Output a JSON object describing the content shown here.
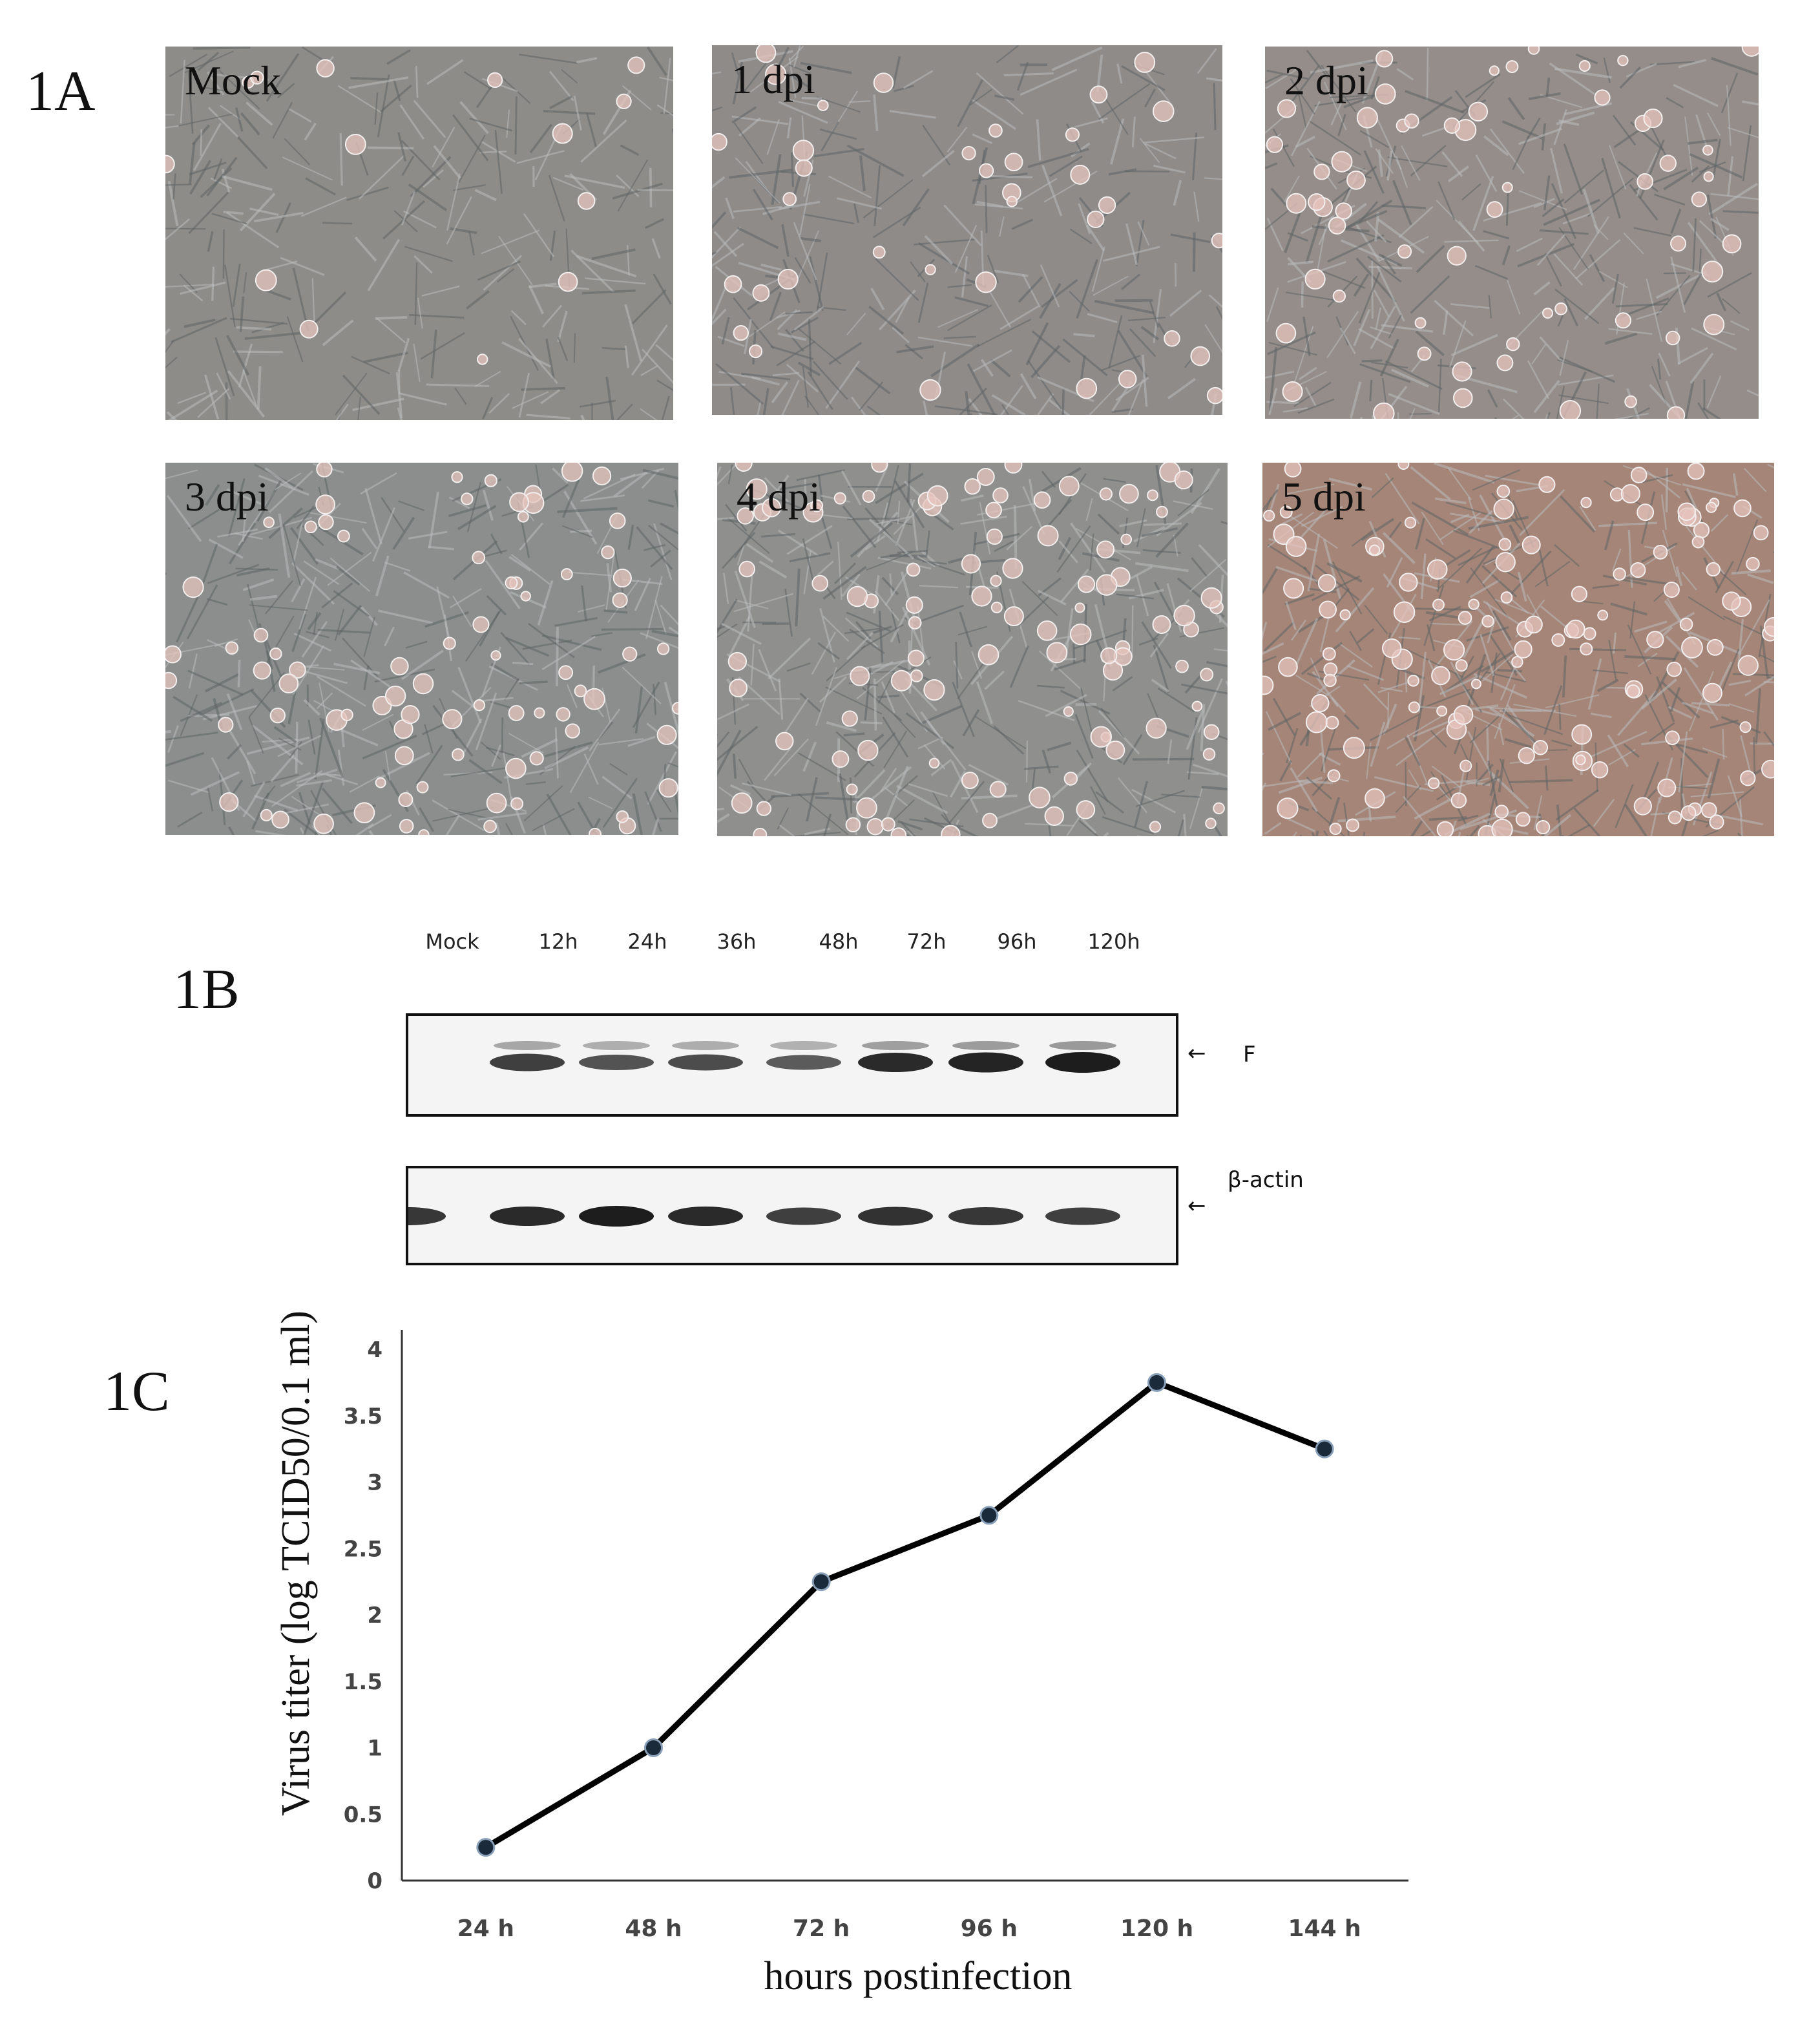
{
  "panels": {
    "a": {
      "label": "1A",
      "images": [
        {
          "label": "Mock",
          "tint": "#8e8c88"
        },
        {
          "label": "1 dpi",
          "tint": "#8e8b89"
        },
        {
          "label": "2 dpi",
          "tint": "#948d89"
        },
        {
          "label": "3 dpi",
          "tint": "#8b8e8c"
        },
        {
          "label": "4 dpi",
          "tint": "#8f8f8d"
        },
        {
          "label": "5 dpi",
          "tint": "#a58577"
        }
      ]
    },
    "b": {
      "label": "1B",
      "lanes": [
        "Mock",
        "12h",
        "24h",
        "36h",
        "48h",
        "72h",
        "96h",
        "120h"
      ],
      "bands": [
        {
          "name": "F",
          "intensity": [
            0.0,
            0.75,
            0.6,
            0.65,
            0.55,
            0.9,
            0.95,
            1.0
          ]
        },
        {
          "name": "β-actin",
          "intensity": [
            0.8,
            0.9,
            1.0,
            0.9,
            0.75,
            0.85,
            0.8,
            0.75
          ]
        }
      ],
      "arrow": "←"
    },
    "c": {
      "label": "1C"
    }
  },
  "chart_data": {
    "type": "line",
    "categories": [
      "24 h",
      "48 h",
      "72 h",
      "96 h",
      "120 h",
      "144 h"
    ],
    "values": [
      0.25,
      1.0,
      2.25,
      2.75,
      3.75,
      3.25
    ],
    "xlabel": "hours postinfection",
    "ylabel": "Virus titer (log TCID50/0.1 ml)",
    "ylim": [
      0,
      4
    ],
    "yticks": [
      "0",
      "0.5",
      "1",
      "1.5",
      "2",
      "2.5",
      "3",
      "3.5",
      "4"
    ],
    "grid": false,
    "line_color": "#000000",
    "marker_color": "#1a2a3a"
  }
}
